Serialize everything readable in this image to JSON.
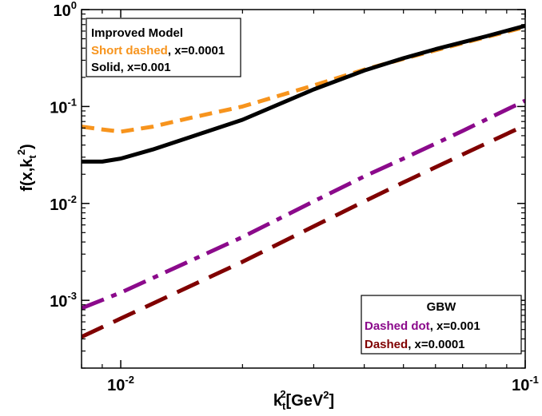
{
  "chart_data": {
    "type": "line",
    "title": "",
    "xlabel": {
      "base": "k",
      "sub": "t",
      "sup": "2",
      "unit_pre": "[GeV",
      "unit_sup": "2",
      "unit_post": "]"
    },
    "ylabel": {
      "pre": "f(x,k",
      "sub": "t",
      "sup": "2",
      "post": ")"
    },
    "x_scale": "log",
    "y_scale": "log",
    "xlim": [
      0.008,
      0.1
    ],
    "ylim": [
      0.0002,
      1.0
    ],
    "grid": false,
    "x_ticks": [
      {
        "value": 0.01,
        "base": "10",
        "exp": "-2"
      },
      {
        "value": 0.1,
        "base": "10",
        "exp": "-1"
      }
    ],
    "y_ticks": [
      {
        "value": 0.001,
        "base": "10",
        "exp": "-3"
      },
      {
        "value": 0.01,
        "base": "10",
        "exp": "-2"
      },
      {
        "value": 0.1,
        "base": "10",
        "exp": "-1"
      },
      {
        "value": 1.0,
        "base": "10",
        "exp": "0"
      }
    ],
    "series": [
      {
        "id": "improved_short_dashed",
        "color": "#F7941D",
        "dash": "short",
        "x": [
          0.008,
          0.009,
          0.01,
          0.012,
          0.015,
          0.02,
          0.03,
          0.04,
          0.05,
          0.06,
          0.07,
          0.08,
          0.1
        ],
        "y": [
          0.062,
          0.058,
          0.055,
          0.062,
          0.077,
          0.1,
          0.165,
          0.24,
          0.31,
          0.38,
          0.45,
          0.52,
          0.66
        ]
      },
      {
        "id": "improved_solid",
        "color": "#000000",
        "dash": "solid",
        "x": [
          0.008,
          0.009,
          0.01,
          0.012,
          0.015,
          0.02,
          0.03,
          0.04,
          0.05,
          0.06,
          0.07,
          0.08,
          0.1
        ],
        "y": [
          0.027,
          0.027,
          0.029,
          0.036,
          0.049,
          0.073,
          0.15,
          0.235,
          0.315,
          0.39,
          0.46,
          0.53,
          0.68
        ]
      },
      {
        "id": "gbw_dashed_dot",
        "color": "#8B0A8B",
        "dash": "dashdot",
        "x": [
          0.008,
          0.01,
          0.02,
          0.03,
          0.04,
          0.05,
          0.07,
          0.1
        ],
        "y": [
          0.00083,
          0.0012,
          0.0045,
          0.0105,
          0.019,
          0.029,
          0.056,
          0.115
        ]
      },
      {
        "id": "gbw_dashed",
        "color": "#800000",
        "dash": "long",
        "x": [
          0.008,
          0.01,
          0.02,
          0.03,
          0.04,
          0.05,
          0.07,
          0.1
        ],
        "y": [
          0.00042,
          0.00065,
          0.0025,
          0.0058,
          0.0105,
          0.0165,
          0.032,
          0.064
        ]
      }
    ],
    "legends": [
      {
        "position": "top-left",
        "title": "Improved Model",
        "entries": [
          {
            "series": "improved_short_dashed",
            "name": "Short dashed",
            "suffix": ", x=0.0001",
            "name_color": "#F7941D"
          },
          {
            "series": "improved_solid",
            "name": "Solid",
            "suffix": ", x=0.001",
            "name_color": "#000000"
          }
        ]
      },
      {
        "position": "bottom-right",
        "title": "GBW",
        "entries": [
          {
            "series": "gbw_dashed_dot",
            "name": "Dashed dot",
            "suffix": ", x=0.001",
            "name_color": "#8B0A8B"
          },
          {
            "series": "gbw_dashed",
            "name": "Dashed",
            "suffix": ", x=0.0001",
            "name_color": "#800000"
          }
        ]
      }
    ]
  }
}
